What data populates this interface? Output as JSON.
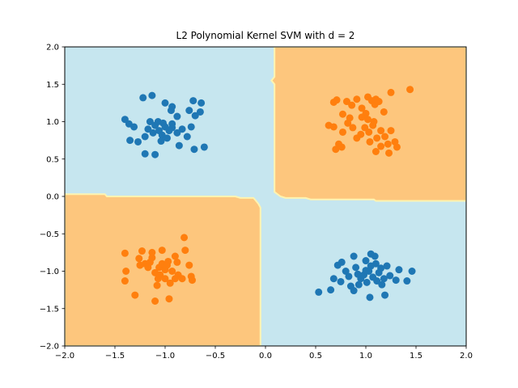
{
  "chart_data": {
    "type": "scatter",
    "title": "L2 Polynomial Kernel SVM with d = 2",
    "xlabel": "",
    "ylabel": "",
    "xlim": [
      -2.0,
      2.0
    ],
    "ylim": [
      -2.0,
      2.0
    ],
    "x_ticks": [
      "−2.0",
      "−1.5",
      "−1.0",
      "−0.5",
      "0.0",
      "0.5",
      "1.0",
      "1.5",
      "2.0"
    ],
    "y_ticks": [
      "−2.0",
      "−1.5",
      "−1.0",
      "−0.5",
      "0.0",
      "0.5",
      "1.0",
      "1.5",
      "2.0"
    ],
    "grid": false,
    "colors": {
      "region_blue": "#c6e6ef",
      "region_orange": "#fdc67d",
      "boundary": "#fff4b0",
      "point_blue": "#1f77b4",
      "point_orange": "#ff7f0e"
    },
    "decision_regions": [
      {
        "class": "orange",
        "polygon": [
          [
            0.09,
            2.0
          ],
          [
            2.0,
            2.0
          ],
          [
            2.0,
            -0.06
          ],
          [
            1.1,
            -0.06
          ],
          [
            1.08,
            -0.04
          ],
          [
            0.45,
            -0.04
          ],
          [
            0.4,
            -0.02
          ],
          [
            0.2,
            -0.02
          ],
          [
            0.15,
            0.0
          ],
          [
            0.09,
            0.06
          ],
          [
            0.09,
            1.5
          ],
          [
            0.06,
            1.55
          ],
          [
            0.09,
            1.6
          ]
        ]
      },
      {
        "class": "orange",
        "polygon": [
          [
            -2.0,
            0.03
          ],
          [
            -1.6,
            0.03
          ],
          [
            -1.58,
            0.0
          ],
          [
            -0.3,
            0.0
          ],
          [
            -0.25,
            -0.02
          ],
          [
            -0.12,
            -0.02
          ],
          [
            -0.1,
            -0.05
          ],
          [
            -0.07,
            -0.1
          ],
          [
            -0.05,
            -0.15
          ],
          [
            -0.05,
            -2.0
          ],
          [
            -2.0,
            -2.0
          ]
        ]
      }
    ],
    "series": [
      {
        "class": "blue",
        "points": [
          [
            -1.4,
            1.03
          ],
          [
            -1.36,
            0.97
          ],
          [
            -1.31,
            0.93
          ],
          [
            -1.22,
            1.32
          ],
          [
            -1.13,
            1.35
          ],
          [
            -1.0,
            1.25
          ],
          [
            -0.94,
            1.15
          ],
          [
            -0.93,
            1.2
          ],
          [
            -0.88,
            1.07
          ],
          [
            -0.76,
            1.15
          ],
          [
            -0.72,
            1.28
          ],
          [
            -0.64,
            1.25
          ],
          [
            -0.65,
            1.13
          ],
          [
            -0.7,
            1.08
          ],
          [
            -1.35,
            0.75
          ],
          [
            -1.27,
            0.73
          ],
          [
            -1.2,
            0.8
          ],
          [
            -1.17,
            0.9
          ],
          [
            -1.15,
            1.0
          ],
          [
            -1.1,
            0.95
          ],
          [
            -1.06,
            0.88
          ],
          [
            -1.03,
            0.82
          ],
          [
            -1.0,
            0.93
          ],
          [
            -0.98,
            0.78
          ],
          [
            -0.93,
            0.92
          ],
          [
            -0.88,
            0.85
          ],
          [
            -0.83,
            0.9
          ],
          [
            -0.78,
            0.8
          ],
          [
            -0.74,
            0.93
          ],
          [
            -1.2,
            0.57
          ],
          [
            -1.1,
            0.56
          ],
          [
            -0.86,
            0.68
          ],
          [
            -0.71,
            0.63
          ],
          [
            -0.61,
            0.66
          ],
          [
            -1.07,
            1.0
          ],
          [
            -1.02,
            0.98
          ],
          [
            -0.96,
            0.88
          ],
          [
            -1.12,
            0.85
          ],
          [
            -1.04,
            0.74
          ],
          [
            -0.93,
            0.97
          ],
          [
            0.53,
            -1.28
          ],
          [
            0.68,
            -1.1
          ],
          [
            0.72,
            -0.92
          ],
          [
            0.76,
            -0.88
          ],
          [
            0.8,
            -1.0
          ],
          [
            0.85,
            -1.2
          ],
          [
            0.88,
            -1.26
          ],
          [
            0.9,
            -0.95
          ],
          [
            0.93,
            -1.18
          ],
          [
            0.95,
            -1.1
          ],
          [
            0.98,
            -1.05
          ],
          [
            1.0,
            -0.86
          ],
          [
            1.03,
            -1.0
          ],
          [
            1.05,
            -0.93
          ],
          [
            1.07,
            -1.08
          ],
          [
            1.1,
            -0.9
          ],
          [
            1.13,
            -1.02
          ],
          [
            1.15,
            -0.96
          ],
          [
            1.18,
            -1.1
          ],
          [
            1.21,
            -0.93
          ],
          [
            1.24,
            -1.06
          ],
          [
            1.3,
            -1.12
          ],
          [
            1.33,
            -0.98
          ],
          [
            1.41,
            -1.13
          ],
          [
            1.46,
            -1.0
          ],
          [
            0.65,
            -1.25
          ],
          [
            0.75,
            -1.14
          ],
          [
            0.83,
            -1.07
          ],
          [
            0.92,
            -1.04
          ],
          [
            1.01,
            -1.15
          ],
          [
            1.11,
            -1.13
          ],
          [
            1.16,
            -1.18
          ],
          [
            1.19,
            -1.32
          ],
          [
            1.04,
            -1.35
          ],
          [
            0.88,
            -0.8
          ],
          [
            1.05,
            -0.77
          ],
          [
            1.09,
            -0.8
          ],
          [
            1.0,
            -0.99
          ]
        ]
      },
      {
        "class": "orange",
        "points": [
          [
            0.68,
            1.26
          ],
          [
            0.71,
            1.29
          ],
          [
            0.77,
            1.1
          ],
          [
            0.81,
            1.27
          ],
          [
            0.86,
            1.22
          ],
          [
            0.91,
            1.3
          ],
          [
            0.96,
            1.18
          ],
          [
            1.0,
            1.11
          ],
          [
            1.02,
            1.33
          ],
          [
            1.06,
            1.28
          ],
          [
            1.09,
            1.23
          ],
          [
            1.13,
            1.27
          ],
          [
            1.18,
            1.13
          ],
          [
            1.25,
            1.39
          ],
          [
            1.44,
            1.43
          ],
          [
            1.1,
            1.3
          ],
          [
            0.63,
            0.95
          ],
          [
            0.68,
            0.93
          ],
          [
            0.73,
            0.7
          ],
          [
            0.77,
            0.86
          ],
          [
            0.82,
            0.98
          ],
          [
            0.87,
            0.92
          ],
          [
            0.91,
            0.78
          ],
          [
            0.95,
            0.83
          ],
          [
            0.99,
            0.92
          ],
          [
            1.03,
            0.86
          ],
          [
            1.07,
            0.95
          ],
          [
            1.11,
            0.78
          ],
          [
            1.15,
            0.88
          ],
          [
            1.19,
            0.8
          ],
          [
            1.22,
            0.7
          ],
          [
            1.25,
            0.88
          ],
          [
            1.29,
            0.73
          ],
          [
            1.31,
            0.66
          ],
          [
            0.7,
            0.63
          ],
          [
            0.76,
            0.66
          ],
          [
            1.04,
            0.73
          ],
          [
            1.1,
            0.6
          ],
          [
            1.15,
            0.67
          ],
          [
            1.23,
            0.58
          ],
          [
            0.96,
            1.06
          ],
          [
            1.08,
            1.0
          ],
          [
            0.84,
            1.05
          ],
          [
            1.02,
            1.03
          ],
          [
            -1.4,
            -0.76
          ],
          [
            -1.39,
            -1.0
          ],
          [
            -1.4,
            -1.13
          ],
          [
            -1.3,
            -1.32
          ],
          [
            -1.26,
            -0.83
          ],
          [
            -1.23,
            -0.73
          ],
          [
            -1.2,
            -0.9
          ],
          [
            -1.17,
            -0.95
          ],
          [
            -1.13,
            -0.82
          ],
          [
            -1.1,
            -1.02
          ],
          [
            -1.06,
            -0.95
          ],
          [
            -1.03,
            -0.9
          ],
          [
            -1.0,
            -0.98
          ],
          [
            -0.97,
            -0.87
          ],
          [
            -0.93,
            -1.0
          ],
          [
            -0.9,
            -0.8
          ],
          [
            -0.87,
            -1.05
          ],
          [
            -0.83,
            -1.1
          ],
          [
            -0.8,
            -0.72
          ],
          [
            -0.76,
            -0.92
          ],
          [
            -0.74,
            -1.07
          ],
          [
            -0.73,
            -1.12
          ],
          [
            -1.13,
            -0.75
          ],
          [
            -1.07,
            -1.1
          ],
          [
            -1.05,
            -1.05
          ],
          [
            -1.08,
            -1.19
          ],
          [
            -1.0,
            -1.1
          ],
          [
            -0.95,
            -1.16
          ],
          [
            -0.9,
            -1.1
          ],
          [
            -1.1,
            -1.4
          ],
          [
            -0.96,
            -1.37
          ],
          [
            -1.25,
            -0.92
          ],
          [
            -1.03,
            -0.72
          ],
          [
            -1.15,
            -0.88
          ],
          [
            -0.98,
            -0.92
          ],
          [
            -0.81,
            -0.55
          ],
          [
            -0.88,
            -0.88
          ]
        ]
      }
    ]
  }
}
